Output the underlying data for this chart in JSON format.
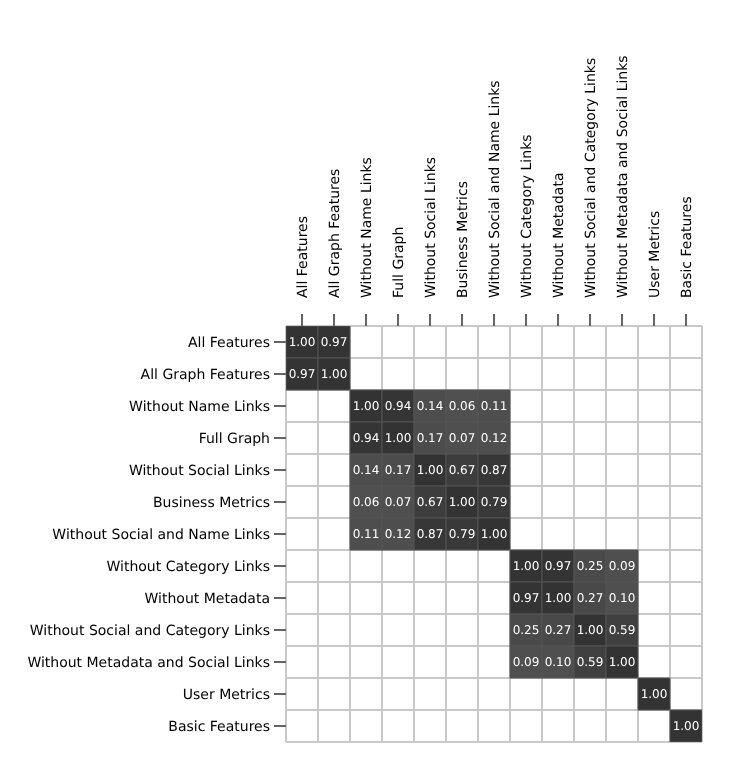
{
  "chart_data": {
    "type": "heatmap",
    "categories": [
      "All Features",
      "All Graph Features",
      "Without Name Links",
      "Full Graph",
      "Without Social Links",
      "Business Metrics",
      "Without Social and Name Links",
      "Without Category Links",
      "Without Metadata",
      "Without Social and Category Links",
      "Without Metadata and Social Links",
      "User Metrics",
      "Basic Features"
    ],
    "y_categories": [
      "All Features",
      "All Graph Features",
      "Without Name Links",
      "Full Graph",
      "Without Social Links",
      "Business Metrics",
      "Without Social and Name Links",
      "Without Category Links",
      "Without Metadata",
      "Without Social and Category Links",
      "Without Metadata and Social Links",
      "User Metrics",
      "Basic Features"
    ],
    "cells": [
      [
        1.0,
        0.97,
        null,
        null,
        null,
        null,
        null,
        null,
        null,
        null,
        null,
        null,
        null
      ],
      [
        0.97,
        1.0,
        null,
        null,
        null,
        null,
        null,
        null,
        null,
        null,
        null,
        null,
        null
      ],
      [
        null,
        null,
        1.0,
        0.94,
        0.14,
        0.06,
        0.11,
        null,
        null,
        null,
        null,
        null,
        null
      ],
      [
        null,
        null,
        0.94,
        1.0,
        0.17,
        0.07,
        0.12,
        null,
        null,
        null,
        null,
        null,
        null
      ],
      [
        null,
        null,
        0.14,
        0.17,
        1.0,
        0.67,
        0.87,
        null,
        null,
        null,
        null,
        null,
        null
      ],
      [
        null,
        null,
        0.06,
        0.07,
        0.67,
        1.0,
        0.79,
        null,
        null,
        null,
        null,
        null,
        null
      ],
      [
        null,
        null,
        0.11,
        0.12,
        0.87,
        0.79,
        1.0,
        null,
        null,
        null,
        null,
        null,
        null
      ],
      [
        null,
        null,
        null,
        null,
        null,
        null,
        null,
        1.0,
        0.97,
        0.25,
        0.09,
        null,
        null
      ],
      [
        null,
        null,
        null,
        null,
        null,
        null,
        null,
        0.97,
        1.0,
        0.27,
        0.1,
        null,
        null
      ],
      [
        null,
        null,
        null,
        null,
        null,
        null,
        null,
        0.25,
        0.27,
        1.0,
        0.59,
        null,
        null
      ],
      [
        null,
        null,
        null,
        null,
        null,
        null,
        null,
        0.09,
        0.1,
        0.59,
        1.0,
        null,
        null
      ],
      [
        null,
        null,
        null,
        null,
        null,
        null,
        null,
        null,
        null,
        null,
        null,
        1.0,
        null
      ],
      [
        null,
        null,
        null,
        null,
        null,
        null,
        null,
        null,
        null,
        null,
        null,
        null,
        1.0
      ]
    ],
    "cell_labels": [
      [
        "1.00",
        "0.97",
        null,
        null,
        null,
        null,
        null,
        null,
        null,
        null,
        null,
        null,
        null
      ],
      [
        "0.97",
        "1.00",
        null,
        null,
        null,
        null,
        null,
        null,
        null,
        null,
        null,
        null,
        null
      ],
      [
        null,
        null,
        "1.00",
        "0.94",
        "0.14",
        "0.06",
        "0.11",
        null,
        null,
        null,
        null,
        null,
        null
      ],
      [
        null,
        null,
        "0.94",
        "1.00",
        "0.17",
        "0.07",
        "0.12",
        null,
        null,
        null,
        null,
        null,
        null
      ],
      [
        null,
        null,
        "0.14",
        "0.17",
        "1.00",
        "0.67",
        "0.87",
        null,
        null,
        null,
        null,
        null,
        null
      ],
      [
        null,
        null,
        "0.06",
        "0.07",
        "0.67",
        "1.00",
        "0.79",
        null,
        null,
        null,
        null,
        null,
        null
      ],
      [
        null,
        null,
        "0.11",
        "0.12",
        "0.87",
        "0.79",
        "1.00",
        null,
        null,
        null,
        null,
        null,
        null
      ],
      [
        null,
        null,
        null,
        null,
        null,
        null,
        null,
        "1.00",
        "0.97",
        "0.25",
        "0.09",
        null,
        null
      ],
      [
        null,
        null,
        null,
        null,
        null,
        null,
        null,
        "0.97",
        "1.00",
        "0.27",
        "0.10",
        null,
        null
      ],
      [
        null,
        null,
        null,
        null,
        null,
        null,
        null,
        "0.25",
        "0.27",
        "1.00",
        "0.59",
        null,
        null
      ],
      [
        null,
        null,
        null,
        null,
        null,
        null,
        null,
        "0.09",
        "0.10",
        "0.59",
        "1.00",
        null,
        null
      ],
      [
        null,
        null,
        null,
        null,
        null,
        null,
        null,
        null,
        null,
        null,
        null,
        "1.00",
        null
      ],
      [
        null,
        null,
        null,
        null,
        null,
        null,
        null,
        null,
        null,
        null,
        null,
        null,
        "1.00"
      ]
    ],
    "grid": true
  }
}
